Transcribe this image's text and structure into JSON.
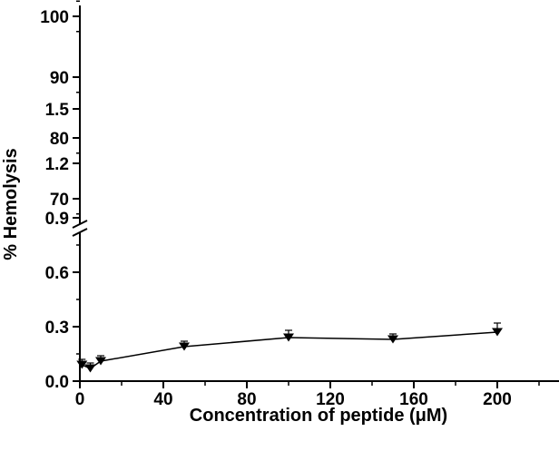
{
  "chart_data": {
    "type": "line",
    "xlabel": "Concentration of peptide (μM)",
    "ylabel": "% Hemolysis",
    "xlim": [
      0,
      220
    ],
    "x_ticks": [
      "0",
      "40",
      "80",
      "120",
      "160",
      "200"
    ],
    "y_axis_broken": true,
    "ylim_lower": [
      0,
      1.6
    ],
    "ylim_upper": [
      65,
      102
    ],
    "y_ticks_lower": [
      "0.0",
      "0.3",
      "0.6",
      "0.9",
      "1.2",
      "1.5"
    ],
    "y_ticks_upper": [
      "70",
      "80",
      "90",
      "100"
    ],
    "marker": "down-triangle",
    "series": [
      {
        "x": [
          1,
          5,
          10,
          50,
          100,
          150,
          200
        ],
        "y": [
          0.09,
          0.07,
          0.11,
          0.19,
          0.24,
          0.23,
          0.27
        ],
        "error": [
          0.03,
          0.03,
          0.03,
          0.03,
          0.04,
          0.03,
          0.05
        ]
      }
    ],
    "colors": {
      "line": "#000000",
      "marker": "#000000"
    }
  }
}
